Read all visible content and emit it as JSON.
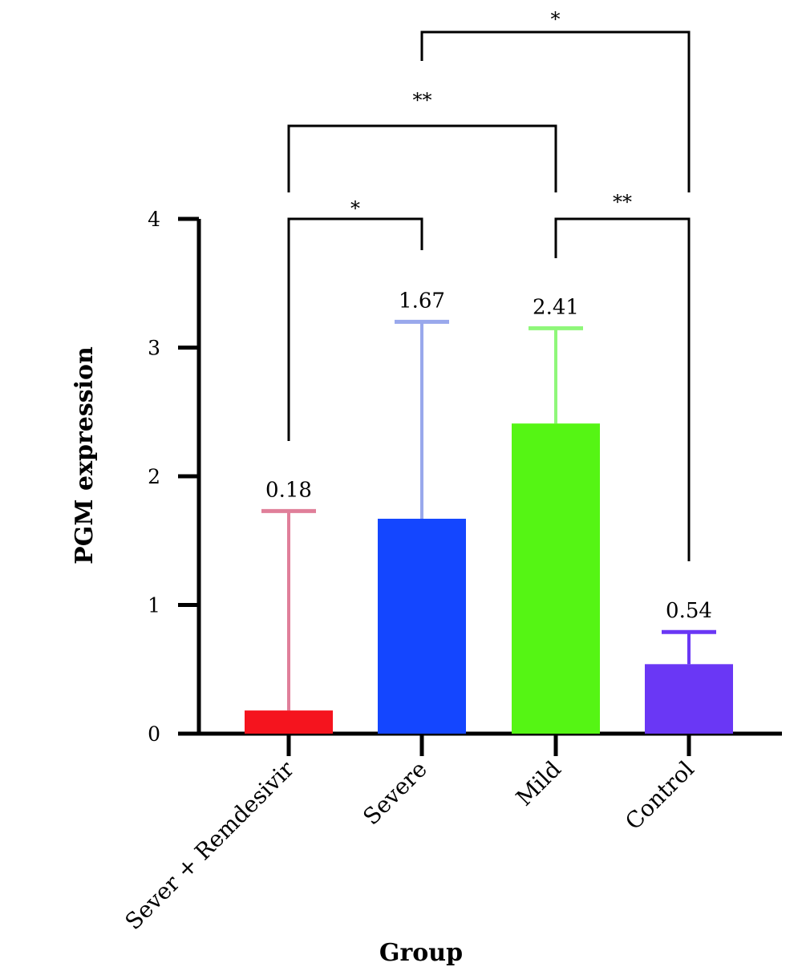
{
  "chart_data": {
    "type": "bar",
    "categories": [
      "Sever + Remdesivir",
      "Severe",
      "Mild",
      "Control"
    ],
    "values": [
      0.18,
      1.67,
      2.41,
      0.54
    ],
    "error_upper": [
      1.73,
      3.2,
      3.15,
      0.79
    ],
    "value_labels": [
      "0.18",
      "1.67",
      "2.41",
      "0.54"
    ],
    "colors": [
      "#f5141e",
      "#1446ff",
      "#55f514",
      "#6a37f5"
    ],
    "error_colors": [
      "#e07f9a",
      "#99a8ec",
      "#8ff77a",
      "#6a37f5"
    ],
    "xlabel": "Group",
    "ylabel": "PGM expression",
    "ylim": [
      0,
      4
    ],
    "yticks": [
      0,
      1,
      2,
      3,
      4
    ],
    "ytick_labels": [
      "0",
      "1",
      "2",
      "3",
      "4"
    ],
    "grid": false,
    "significance": [
      {
        "from": 0,
        "to": 1,
        "label": "*"
      },
      {
        "from": 2,
        "to": 3,
        "label": "**"
      },
      {
        "from": 0,
        "to": 2,
        "label": "**"
      },
      {
        "from": 1,
        "to": 3,
        "label": "*"
      }
    ]
  }
}
